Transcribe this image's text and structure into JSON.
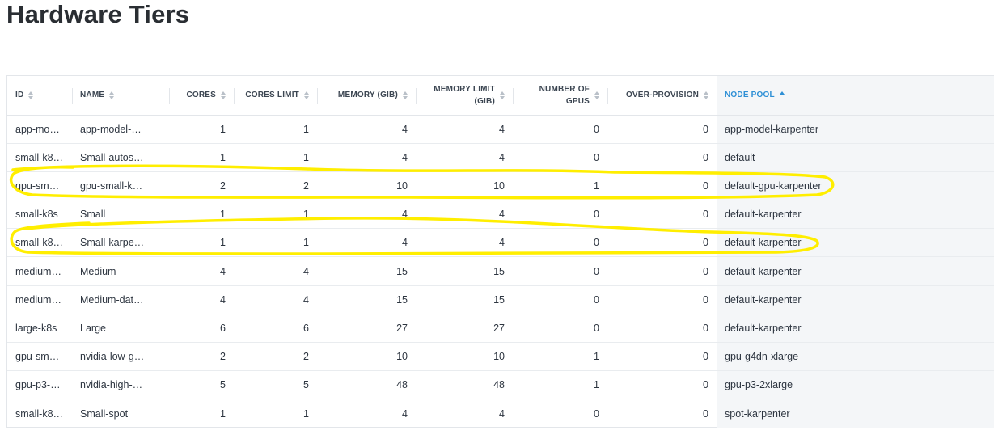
{
  "page": {
    "title": "Hardware Tiers"
  },
  "table": {
    "columns": [
      {
        "key": "id",
        "label": "ID"
      },
      {
        "key": "name",
        "label": "NAME"
      },
      {
        "key": "cores",
        "label": "CORES"
      },
      {
        "key": "cores_limit",
        "label": "CORES LIMIT"
      },
      {
        "key": "memory",
        "label": "MEMORY (GIB)"
      },
      {
        "key": "memory_limit",
        "label_line1": "MEMORY LIMIT",
        "label_line2": "(GIB)"
      },
      {
        "key": "gpus",
        "label_line1": "NUMBER OF",
        "label_line2": "GPUS"
      },
      {
        "key": "over_provision",
        "label": "OVER-PROVISION"
      },
      {
        "key": "node_pool",
        "label": "NODE POOL",
        "sorted": "ascending"
      }
    ],
    "rows": [
      {
        "id": "app-mod…",
        "name": "app-model-…",
        "cores": "1",
        "cores_limit": "1",
        "memory": "4",
        "memory_limit": "4",
        "gpus": "0",
        "over_provision": "0",
        "node_pool": "app-model-karpenter"
      },
      {
        "id": "small-k8…",
        "name": "Small-autos…",
        "cores": "1",
        "cores_limit": "1",
        "memory": "4",
        "memory_limit": "4",
        "gpus": "0",
        "over_provision": "0",
        "node_pool": "default"
      },
      {
        "id": "gpu-sma…",
        "name": "gpu-small-k…",
        "cores": "2",
        "cores_limit": "2",
        "memory": "10",
        "memory_limit": "10",
        "gpus": "1",
        "over_provision": "0",
        "node_pool": "default-gpu-karpenter"
      },
      {
        "id": "small-k8s",
        "name": "Small",
        "cores": "1",
        "cores_limit": "1",
        "memory": "4",
        "memory_limit": "4",
        "gpus": "0",
        "over_provision": "0",
        "node_pool": "default-karpenter"
      },
      {
        "id": "small-k8…",
        "name": "Small-karpe…",
        "cores": "1",
        "cores_limit": "1",
        "memory": "4",
        "memory_limit": "4",
        "gpus": "0",
        "over_provision": "0",
        "node_pool": "default-karpenter"
      },
      {
        "id": "medium-…",
        "name": "Medium",
        "cores": "4",
        "cores_limit": "4",
        "memory": "15",
        "memory_limit": "15",
        "gpus": "0",
        "over_provision": "0",
        "node_pool": "default-karpenter"
      },
      {
        "id": "medium-…",
        "name": "Medium-dat…",
        "cores": "4",
        "cores_limit": "4",
        "memory": "15",
        "memory_limit": "15",
        "gpus": "0",
        "over_provision": "0",
        "node_pool": "default-karpenter"
      },
      {
        "id": "large-k8s",
        "name": "Large",
        "cores": "6",
        "cores_limit": "6",
        "memory": "27",
        "memory_limit": "27",
        "gpus": "0",
        "over_provision": "0",
        "node_pool": "default-karpenter"
      },
      {
        "id": "gpu-sma…",
        "name": "nvidia-low-g…",
        "cores": "2",
        "cores_limit": "2",
        "memory": "10",
        "memory_limit": "10",
        "gpus": "1",
        "over_provision": "0",
        "node_pool": "gpu-g4dn-xlarge"
      },
      {
        "id": "gpu-p3-2…",
        "name": "nvidia-high-…",
        "cores": "5",
        "cores_limit": "5",
        "memory": "48",
        "memory_limit": "48",
        "gpus": "1",
        "over_provision": "0",
        "node_pool": "gpu-p3-2xlarge"
      },
      {
        "id": "small-k8…",
        "name": "Small-spot",
        "cores": "1",
        "cores_limit": "1",
        "memory": "4",
        "memory_limit": "4",
        "gpus": "0",
        "over_provision": "0",
        "node_pool": "spot-karpenter"
      }
    ]
  },
  "annotation": {
    "stroke_color": "#ffee00",
    "highlighted_rows": [
      2,
      4
    ]
  },
  "colors": {
    "accent": "#2d8fd5",
    "sort_icon": "#b9c0c8",
    "active_column_bg": "#f4f6f8"
  }
}
